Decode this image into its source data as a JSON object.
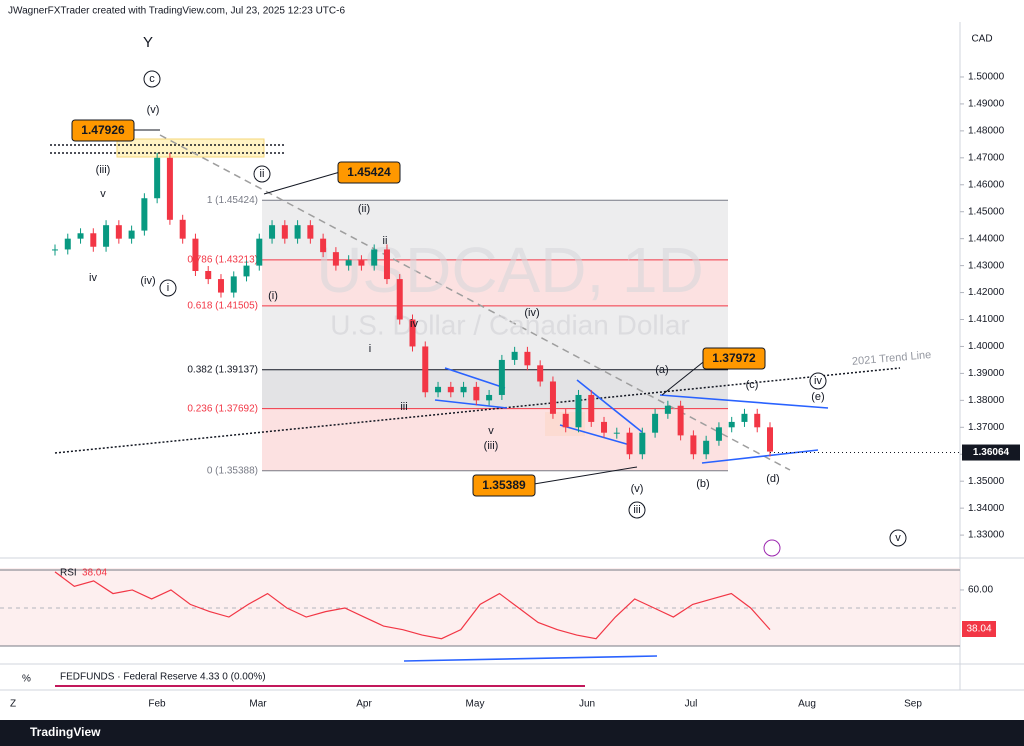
{
  "header": {
    "title": "JWagnerFXTrader created with TradingView.com, Jul 23, 2025 12:23 UTC-6",
    "currency": "CAD"
  },
  "chart_data": {
    "type": "candlestick",
    "watermark": "USDCAD, 1D",
    "watermark_sub": "U.S. Dollar / Canadian Dollar",
    "values": [
      1.436,
      1.44,
      1.442,
      1.437,
      1.445,
      1.44,
      1.443,
      1.455,
      1.47,
      1.447,
      1.44,
      1.428,
      1.425,
      1.42,
      1.426,
      1.43,
      1.44,
      1.445,
      1.44,
      1.445,
      1.44,
      1.435,
      1.43,
      1.432,
      1.43,
      1.436,
      1.425,
      1.41,
      1.4,
      1.383,
      1.385,
      1.383,
      1.385,
      1.38,
      1.382,
      1.395,
      1.398,
      1.393,
      1.387,
      1.375,
      1.37,
      1.382,
      1.372,
      1.368,
      1.368,
      1.36,
      1.368,
      1.375,
      1.378,
      1.367,
      1.36,
      1.365,
      1.37,
      1.372,
      1.375,
      1.37,
      1.361
    ],
    "ylim": [
      1.3215,
      1.5204
    ],
    "yticks": [
      {
        "value": 1.5,
        "label": "1.50000"
      },
      {
        "value": 1.49,
        "label": "1.49000"
      },
      {
        "value": 1.48,
        "label": "1.48000"
      },
      {
        "value": 1.47,
        "label": "1.47000"
      },
      {
        "value": 1.46,
        "label": "1.46000"
      },
      {
        "value": 1.45,
        "label": "1.45000"
      },
      {
        "value": 1.44,
        "label": "1.44000"
      },
      {
        "value": 1.43,
        "label": "1.43000"
      },
      {
        "value": 1.42,
        "label": "1.42000"
      },
      {
        "value": 1.41,
        "label": "1.41000"
      },
      {
        "value": 1.4,
        "label": "1.40000"
      },
      {
        "value": 1.39,
        "label": "1.39000"
      },
      {
        "value": 1.38,
        "label": "1.38000"
      },
      {
        "value": 1.37,
        "label": "1.37000"
      },
      {
        "value": 1.36,
        "label": "1.36000"
      },
      {
        "value": 1.35,
        "label": "1.35000"
      },
      {
        "value": 1.34,
        "label": "1.34000"
      },
      {
        "value": 1.33,
        "label": "1.33000"
      }
    ],
    "last_price": 1.36064,
    "months": [
      "Feb",
      "Mar",
      "Apr",
      "May",
      "Jun",
      "Jul",
      "Aug",
      "Sep"
    ],
    "fib_levels": [
      {
        "label": "1 (1.45424)",
        "price": 1.45424
      },
      {
        "label": "0.786 (1.43213)",
        "price": 1.43213
      },
      {
        "label": "0.618 (1.41505)",
        "price": 1.41505
      },
      {
        "label": "0.382 (1.39137)",
        "price": 1.39137
      },
      {
        "label": "0.236 (1.37692)",
        "price": 1.37692
      },
      {
        "label": "0 (1.35388)",
        "price": 1.35388
      }
    ],
    "price_callouts": [
      1.47926,
      1.45424,
      1.37972,
      1.35389
    ],
    "trend_line_label": "2021 Trend Line",
    "wave_labels": [
      "Y",
      "c",
      "(v)",
      "(iii)",
      "v",
      "iv",
      "(iv)",
      "i",
      "ii",
      "(ii)",
      "ii",
      "(i)",
      "iv",
      "i",
      "iii",
      "v",
      "(iii)",
      "(iv)",
      "(a)",
      "(c)",
      "iv",
      "(e)",
      "(b)",
      "(d)",
      "(v)",
      "iii",
      "v"
    ]
  },
  "rsi": {
    "name": "RSI",
    "value_label": "38.04",
    "ylim": [
      28.95,
      71.05
    ],
    "yticks": [
      {
        "value": 60,
        "label": "60.00"
      }
    ],
    "values": [
      70,
      62,
      65,
      58,
      60,
      55,
      60,
      52,
      48,
      45,
      52,
      58,
      50,
      45,
      48,
      50,
      45,
      40,
      38,
      35,
      33,
      38,
      52,
      58,
      50,
      42,
      38,
      35,
      33,
      45,
      55,
      50,
      45,
      52,
      55,
      58,
      50,
      38.04
    ]
  },
  "footer": {
    "indicator": "FEDFUNDS · Federal Reserve  4.33  0 (0.00%)",
    "brand": "TradingView"
  }
}
